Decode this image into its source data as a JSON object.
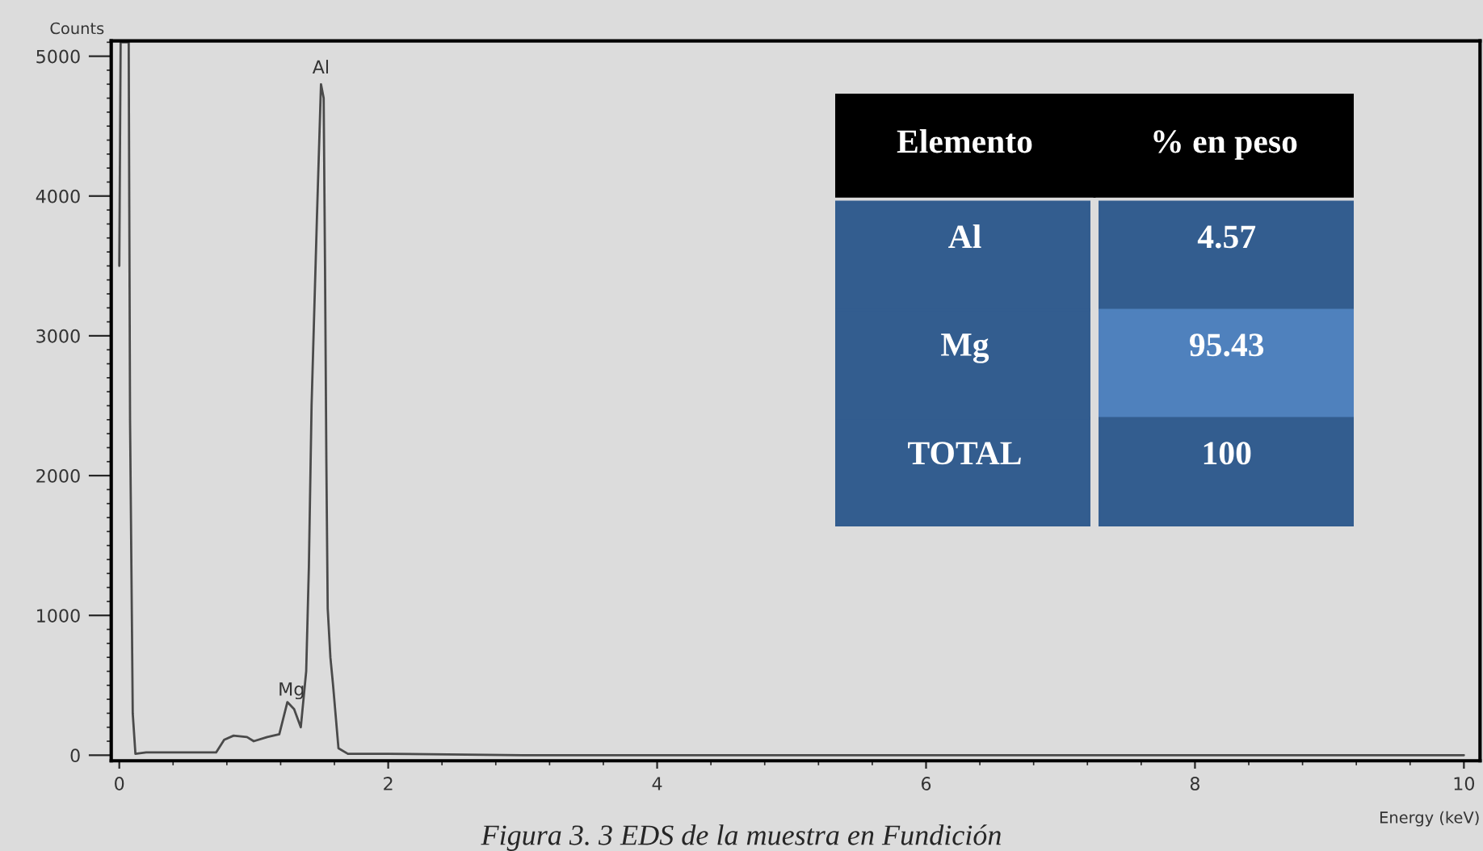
{
  "chart_data": [
    {
      "type": "line",
      "xlabel": "Energy (keV)",
      "ylabel": "Counts",
      "series": [
        {
          "color": "#4a4a4a",
          "x": [
            0,
            0.01,
            0.07,
            0.08,
            0.1,
            0.12,
            0.2,
            0.4,
            0.6,
            0.72,
            0.78,
            0.85,
            0.95,
            1.0,
            1.1,
            1.19,
            1.25,
            1.3,
            1.35,
            1.39,
            1.41,
            1.43,
            1.47,
            1.5,
            1.52,
            1.53,
            1.54,
            1.55,
            1.57,
            1.59,
            1.63,
            1.7,
            2,
            3,
            4,
            5,
            6,
            7,
            8,
            9,
            10
          ],
          "values": [
            3500,
            5100,
            5100,
            2400,
            300,
            10,
            20,
            20,
            20,
            20,
            110,
            140,
            130,
            100,
            130,
            150,
            380,
            330,
            200,
            600,
            1350,
            2500,
            3850,
            4800,
            4700,
            3500,
            2100,
            1050,
            700,
            500,
            50,
            10,
            10,
            0,
            0,
            0,
            0,
            0,
            0,
            0,
            0
          ]
        }
      ],
      "xlim": [
        -0.06,
        10.12
      ],
      "ylim": [
        -40,
        5110
      ],
      "xticks": [
        0,
        2,
        4,
        6,
        8,
        10
      ],
      "yticks": [
        0,
        1000,
        2000,
        3000,
        4000,
        5000
      ],
      "grid": false,
      "legend": false,
      "marker": "none",
      "line_style": "solid",
      "annotations": [
        {
          "text": "Al",
          "x": 1.5,
          "y": 4850
        },
        {
          "text": "Mg",
          "x": 1.28,
          "y": 400
        },
        "Figura 3. 3 EDS de la muestra en Fundición"
      ]
    },
    {
      "type": "other",
      "categories": [
        "Elemento",
        "% en peso"
      ],
      "y_categories": [
        "Al",
        "Mg",
        "TOTAL"
      ],
      "cell_labels": [
        [
          "4.57"
        ],
        [
          "95.43"
        ],
        [
          "100"
        ]
      ],
      "colors": [
        "#335d8f",
        "#4f81bd",
        "#335d8f"
      ]
    }
  ]
}
